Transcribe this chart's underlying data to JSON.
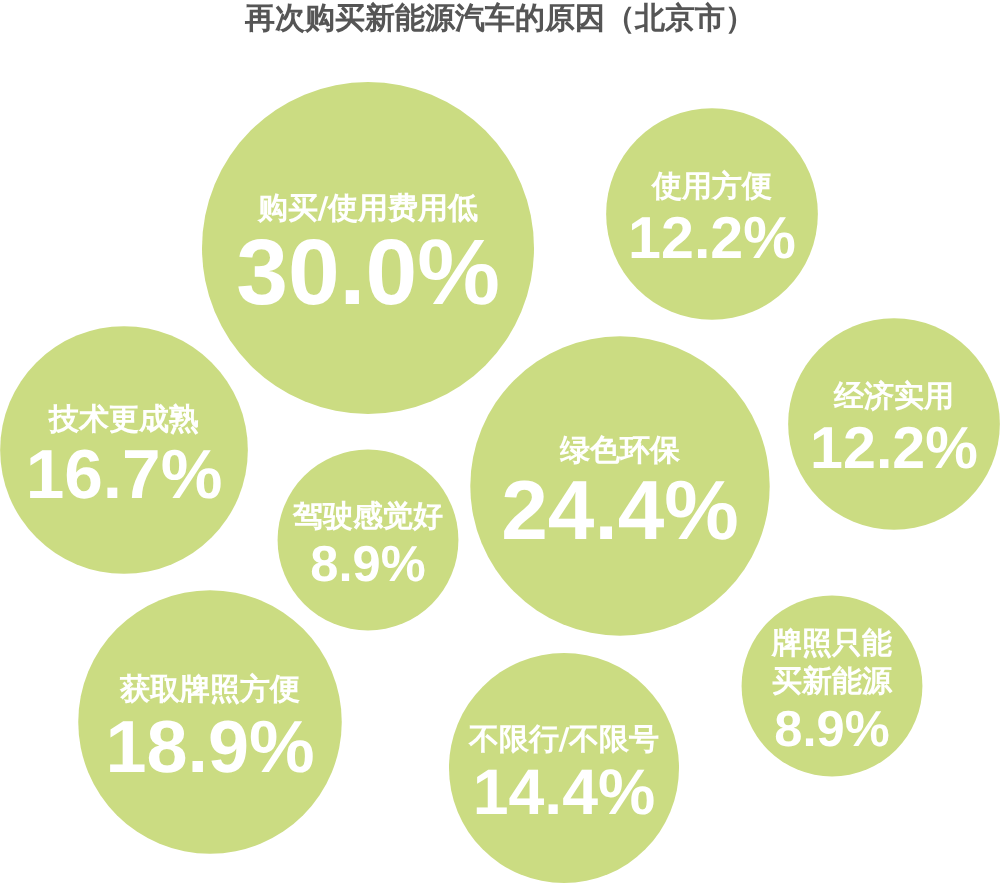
{
  "chart_data": {
    "type": "other",
    "title": "再次购买新能源汽车的原因（北京市）",
    "categories": [
      "购买/使用费用低",
      "使用方便",
      "技术更成熟",
      "驾驶感觉好",
      "绿色环保",
      "经济实用",
      "获取牌照方便",
      "不限行/不限号",
      "牌照只能买新能源"
    ],
    "values": [
      30.0,
      12.2,
      16.7,
      8.9,
      24.4,
      12.2,
      18.9,
      14.4,
      8.9
    ],
    "value_labels": [
      "30.0%",
      "12.2%",
      "16.7%",
      "8.9%",
      "24.4%",
      "12.2%",
      "18.9%",
      "14.4%",
      "8.9%"
    ],
    "color": "#cbdc82"
  }
}
